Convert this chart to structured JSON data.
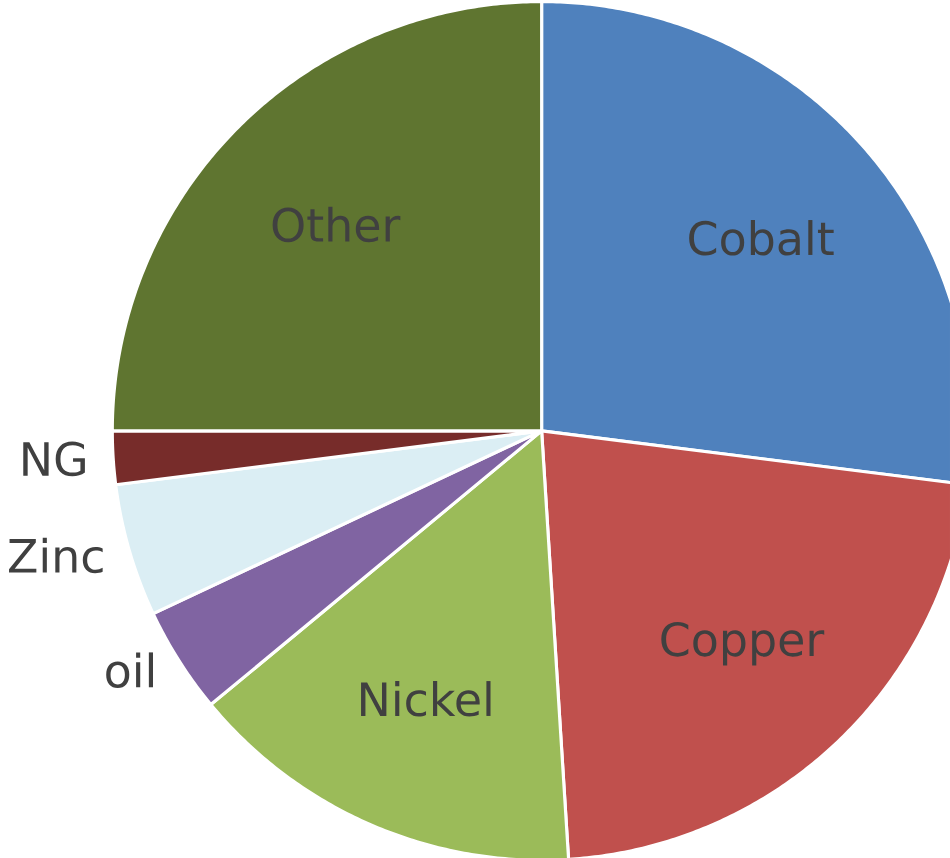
{
  "chart_data": {
    "type": "pie",
    "categories": [
      "Cobalt",
      "Copper",
      "Nickel",
      "oil",
      "Zinc",
      "NG",
      "Other"
    ],
    "values": [
      27,
      22,
      15,
      4,
      5,
      2,
      25
    ],
    "colors": [
      "#4f81bd",
      "#c0504d",
      "#9bbb59",
      "#8064a2",
      "#dbeef4",
      "#772c2a",
      "#5f7530"
    ]
  }
}
